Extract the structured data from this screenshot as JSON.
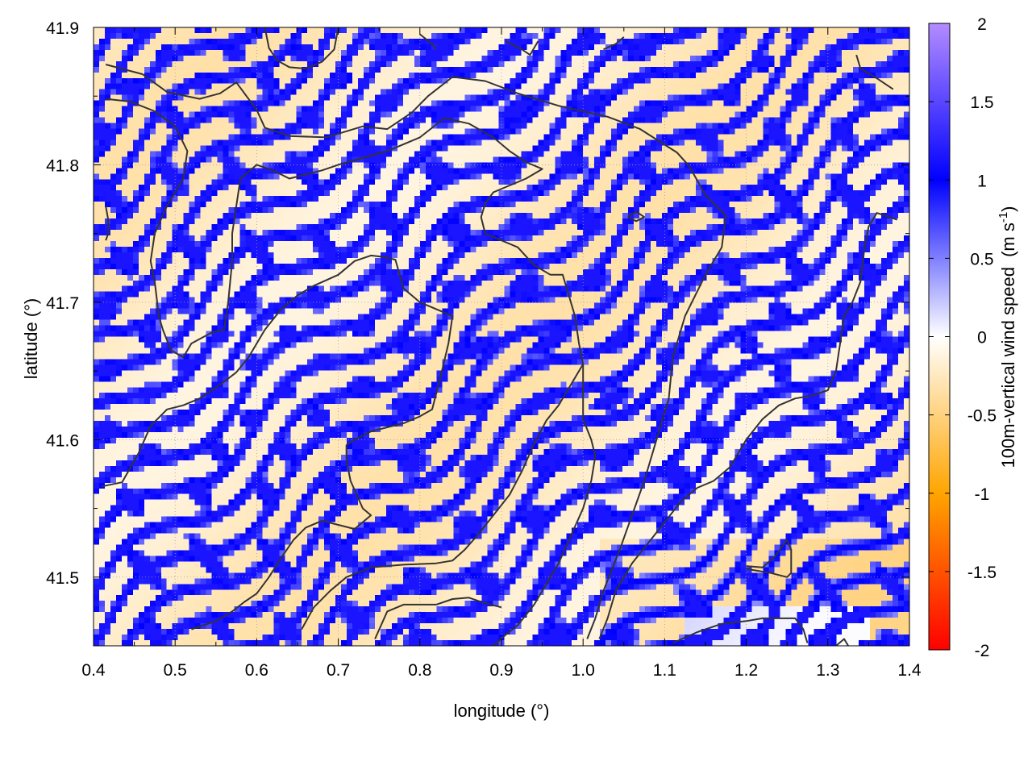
{
  "chart_data": {
    "type": "heatmap",
    "title": "",
    "xlabel": "longitude (°)",
    "ylabel": "latitude (°)",
    "colorbar_label": "100m-vertical wind speed",
    "colorbar_unit_prefix": "(m s",
    "colorbar_unit_exponent": "-1",
    "colorbar_unit_suffix": ")",
    "xlim": [
      0.4,
      1.4
    ],
    "ylim": [
      41.45,
      41.9
    ],
    "x_ticks": [
      0.4,
      0.5,
      0.6,
      0.7,
      0.8,
      0.9,
      1.0,
      1.1,
      1.2,
      1.3,
      1.4
    ],
    "x_tick_labels": [
      "0.4",
      "0.5",
      "0.6",
      "0.7",
      "0.8",
      "0.9",
      "1.0",
      "1.1",
      "1.2",
      "1.3",
      "1.4"
    ],
    "y_ticks": [
      41.5,
      41.6,
      41.7,
      41.8,
      41.9
    ],
    "y_tick_labels": [
      "41.5",
      "41.6",
      "41.7",
      "41.8",
      "41.9"
    ],
    "colorbar_range": [
      -2,
      2
    ],
    "colorbar_ticks": [
      -2,
      -1.5,
      -1,
      -0.5,
      0,
      0.5,
      1,
      1.5,
      2
    ],
    "colorbar_tick_labels": [
      "-2",
      "-1.5",
      "-1",
      "-0.5",
      "0",
      "0.5",
      "1",
      "1.5",
      "2"
    ],
    "colormap": [
      {
        "value": -2,
        "color": "#ff0000"
      },
      {
        "value": -1,
        "color": "#ffa500"
      },
      {
        "value": 0,
        "color": "#ffffff"
      },
      {
        "value": 1,
        "color": "#0000ff"
      },
      {
        "value": 2,
        "color": "#b38cff"
      }
    ],
    "grid": true,
    "contour_color": "#333333",
    "contours": [
      [
        [
          0.415,
          41.873
        ],
        [
          0.46,
          41.866
        ],
        [
          0.49,
          41.853
        ],
        [
          0.53,
          41.848
        ],
        [
          0.555,
          41.852
        ],
        [
          0.575,
          41.86
        ],
        [
          0.6,
          41.84
        ],
        [
          0.61,
          41.827
        ],
        [
          0.64,
          41.821
        ],
        [
          0.685,
          41.82
        ],
        [
          0.73,
          41.828
        ],
        [
          0.76,
          41.826
        ],
        [
          0.79,
          41.838
        ],
        [
          0.81,
          41.85
        ],
        [
          0.84,
          41.864
        ],
        [
          0.88,
          41.861
        ],
        [
          0.92,
          41.852
        ],
        [
          0.97,
          41.843
        ],
        [
          1.03,
          41.835
        ],
        [
          1.07,
          41.826
        ],
        [
          1.115,
          41.809
        ],
        [
          1.13,
          41.799
        ],
        [
          1.15,
          41.778
        ],
        [
          1.175,
          41.763
        ],
        [
          1.17,
          41.74
        ],
        [
          1.15,
          41.72
        ],
        [
          1.125,
          41.69
        ],
        [
          1.11,
          41.66
        ],
        [
          1.105,
          41.63
        ],
        [
          1.09,
          41.6
        ],
        [
          1.075,
          41.57
        ],
        [
          1.06,
          41.545
        ],
        [
          1.045,
          41.52
        ],
        [
          1.025,
          41.49
        ],
        [
          1.015,
          41.47
        ],
        [
          1.005,
          41.455
        ]
      ],
      [
        [
          0.415,
          41.848
        ],
        [
          0.445,
          41.846
        ],
        [
          0.475,
          41.839
        ],
        [
          0.5,
          41.828
        ],
        [
          0.515,
          41.81
        ],
        [
          0.51,
          41.79
        ],
        [
          0.49,
          41.77
        ],
        [
          0.475,
          41.75
        ],
        [
          0.47,
          41.73
        ],
        [
          0.475,
          41.715
        ],
        [
          0.48,
          41.69
        ],
        [
          0.485,
          41.68
        ],
        [
          0.495,
          41.665
        ],
        [
          0.51,
          41.66
        ],
        [
          0.52,
          41.67
        ],
        [
          0.545,
          41.678
        ],
        [
          0.56,
          41.68
        ],
        [
          0.565,
          41.7
        ],
        [
          0.57,
          41.73
        ],
        [
          0.57,
          41.75
        ],
        [
          0.575,
          41.77
        ],
        [
          0.58,
          41.79
        ],
        [
          0.6,
          41.8
        ],
        [
          0.62,
          41.796
        ],
        [
          0.64,
          41.79
        ],
        [
          0.66,
          41.793
        ],
        [
          0.68,
          41.796
        ],
        [
          0.7,
          41.8
        ],
        [
          0.73,
          41.805
        ],
        [
          0.76,
          41.81
        ],
        [
          0.8,
          41.82
        ],
        [
          0.83,
          41.834
        ],
        [
          0.86,
          41.83
        ],
        [
          0.89,
          41.82
        ],
        [
          0.91,
          41.81
        ],
        [
          0.93,
          41.802
        ],
        [
          0.95,
          41.797
        ],
        [
          0.93,
          41.79
        ],
        [
          0.91,
          41.785
        ],
        [
          0.89,
          41.78
        ],
        [
          0.88,
          41.772
        ],
        [
          0.875,
          41.762
        ],
        [
          0.88,
          41.75
        ],
        [
          0.9,
          41.745
        ],
        [
          0.92,
          41.74
        ],
        [
          0.94,
          41.727
        ],
        [
          0.96,
          41.72
        ],
        [
          0.975,
          41.72
        ],
        [
          0.98,
          41.71
        ],
        [
          0.99,
          41.69
        ],
        [
          0.995,
          41.67
        ],
        [
          1.0,
          41.655
        ],
        [
          1.0,
          41.635
        ],
        [
          1.0,
          41.615
        ],
        [
          1.01,
          41.6
        ],
        [
          1.015,
          41.588
        ],
        [
          1.01,
          41.57
        ],
        [
          1.0,
          41.55
        ],
        [
          0.985,
          41.53
        ],
        [
          0.97,
          41.51
        ],
        [
          0.955,
          41.495
        ],
        [
          0.94,
          41.48
        ],
        [
          0.92,
          41.465
        ],
        [
          0.905,
          41.458
        ],
        [
          0.89,
          41.45
        ]
      ],
      [
        [
          0.41,
          41.566
        ],
        [
          0.435,
          41.569
        ],
        [
          0.455,
          41.59
        ],
        [
          0.47,
          41.61
        ],
        [
          0.49,
          41.622
        ],
        [
          0.51,
          41.625
        ],
        [
          0.53,
          41.63
        ],
        [
          0.555,
          41.64
        ],
        [
          0.575,
          41.649
        ],
        [
          0.59,
          41.66
        ],
        [
          0.61,
          41.68
        ],
        [
          0.63,
          41.695
        ],
        [
          0.65,
          41.705
        ],
        [
          0.67,
          41.712
        ],
        [
          0.7,
          41.72
        ],
        [
          0.72,
          41.73
        ],
        [
          0.74,
          41.734
        ],
        [
          0.755,
          41.733
        ],
        [
          0.77,
          41.731
        ],
        [
          0.78,
          41.71
        ],
        [
          0.8,
          41.7
        ],
        [
          0.82,
          41.695
        ],
        [
          0.84,
          41.69
        ],
        [
          0.835,
          41.67
        ],
        [
          0.825,
          41.645
        ],
        [
          0.815,
          41.622
        ],
        [
          0.8,
          41.617
        ],
        [
          0.78,
          41.612
        ],
        [
          0.76,
          41.609
        ],
        [
          0.74,
          41.606
        ],
        [
          0.72,
          41.6
        ],
        [
          0.71,
          41.596
        ],
        [
          0.71,
          41.585
        ],
        [
          0.715,
          41.57
        ],
        [
          0.73,
          41.55
        ],
        [
          0.74,
          41.545
        ],
        [
          0.72,
          41.535
        ],
        [
          0.7,
          41.538
        ],
        [
          0.68,
          41.541
        ],
        [
          0.66,
          41.536
        ],
        [
          0.645,
          41.527
        ],
        [
          0.63,
          41.514
        ],
        [
          0.615,
          41.5
        ],
        [
          0.6,
          41.488
        ],
        [
          0.585,
          41.482
        ],
        [
          0.57,
          41.475
        ],
        [
          0.55,
          41.468
        ],
        [
          0.52,
          41.462
        ]
      ],
      [
        [
          0.655,
          41.462
        ],
        [
          0.67,
          41.478
        ],
        [
          0.69,
          41.49
        ],
        [
          0.71,
          41.5
        ],
        [
          0.74,
          41.507
        ],
        [
          0.78,
          41.509
        ],
        [
          0.82,
          41.51
        ],
        [
          0.84,
          41.512
        ],
        [
          0.855,
          41.52
        ],
        [
          0.87,
          41.53
        ],
        [
          0.89,
          41.545
        ],
        [
          0.91,
          41.56
        ],
        [
          0.925,
          41.577
        ],
        [
          0.94,
          41.597
        ],
        [
          0.955,
          41.614
        ],
        [
          0.97,
          41.625
        ],
        [
          0.985,
          41.64
        ],
        [
          1.0,
          41.655
        ]
      ],
      [
        [
          0.745,
          41.455
        ],
        [
          0.76,
          41.475
        ],
        [
          0.78,
          41.48
        ],
        [
          0.82,
          41.48
        ],
        [
          0.84,
          41.484
        ],
        [
          0.86,
          41.485
        ],
        [
          0.88,
          41.481
        ],
        [
          0.9,
          41.478
        ]
      ],
      [
        [
          1.02,
          41.455
        ],
        [
          1.03,
          41.47
        ],
        [
          1.04,
          41.49
        ],
        [
          1.06,
          41.51
        ],
        [
          1.08,
          41.525
        ],
        [
          1.1,
          41.54
        ],
        [
          1.12,
          41.555
        ],
        [
          1.14,
          41.565
        ],
        [
          1.16,
          41.57
        ],
        [
          1.18,
          41.58
        ],
        [
          1.2,
          41.6
        ],
        [
          1.22,
          41.615
        ],
        [
          1.24,
          41.625
        ],
        [
          1.26,
          41.63
        ],
        [
          1.28,
          41.632
        ],
        [
          1.3,
          41.636
        ],
        [
          1.31,
          41.65
        ],
        [
          1.315,
          41.67
        ],
        [
          1.32,
          41.69
        ],
        [
          1.33,
          41.7
        ],
        [
          1.34,
          41.715
        ],
        [
          1.345,
          41.74
        ],
        [
          1.35,
          41.755
        ],
        [
          1.36,
          41.765
        ],
        [
          1.385,
          41.76
        ]
      ],
      [
        [
          1.11,
          41.452
        ],
        [
          1.14,
          41.46
        ],
        [
          1.17,
          41.466
        ],
        [
          1.2,
          41.468
        ],
        [
          1.22,
          41.47
        ],
        [
          1.245,
          41.47
        ],
        [
          1.26,
          41.47
        ],
        [
          1.27,
          41.462
        ],
        [
          1.275,
          41.452
        ]
      ],
      [
        [
          0.61,
          41.9
        ],
        [
          0.615,
          41.885
        ],
        [
          0.625,
          41.876
        ],
        [
          0.64,
          41.871
        ],
        [
          0.66,
          41.87
        ],
        [
          0.68,
          41.875
        ],
        [
          0.695,
          41.884
        ],
        [
          0.7,
          41.9
        ]
      ],
      [
        [
          0.905,
          41.89
        ],
        [
          0.925,
          41.884
        ],
        [
          0.935,
          41.88
        ],
        [
          0.945,
          41.89
        ]
      ],
      [
        [
          0.8,
          41.895
        ],
        [
          0.815,
          41.888
        ],
        [
          0.82,
          41.884
        ]
      ],
      [
        [
          1.025,
          41.884
        ],
        [
          1.04,
          41.888
        ],
        [
          1.05,
          41.893
        ]
      ],
      [
        [
          1.335,
          41.88
        ],
        [
          1.34,
          41.87
        ],
        [
          1.36,
          41.863
        ],
        [
          1.38,
          41.855
        ]
      ],
      [
        [
          0.415,
          41.77
        ],
        [
          0.418,
          41.76
        ],
        [
          0.418,
          41.75
        ],
        [
          0.415,
          41.745
        ]
      ],
      [
        [
          1.2,
          41.508
        ],
        [
          1.22,
          41.507
        ],
        [
          1.235,
          41.515
        ],
        [
          1.25,
          41.527
        ],
        [
          1.255,
          41.52
        ],
        [
          1.255,
          41.503
        ],
        [
          1.25,
          41.5
        ],
        [
          1.23,
          41.503
        ],
        [
          1.2,
          41.506
        ]
      ],
      [
        [
          1.055,
          41.762
        ],
        [
          1.065,
          41.766
        ],
        [
          1.075,
          41.762
        ],
        [
          1.065,
          41.759
        ],
        [
          1.055,
          41.762
        ]
      ],
      [
        [
          1.31,
          41.45
        ],
        [
          1.32,
          41.455
        ],
        [
          1.325,
          41.45
        ]
      ]
    ]
  }
}
